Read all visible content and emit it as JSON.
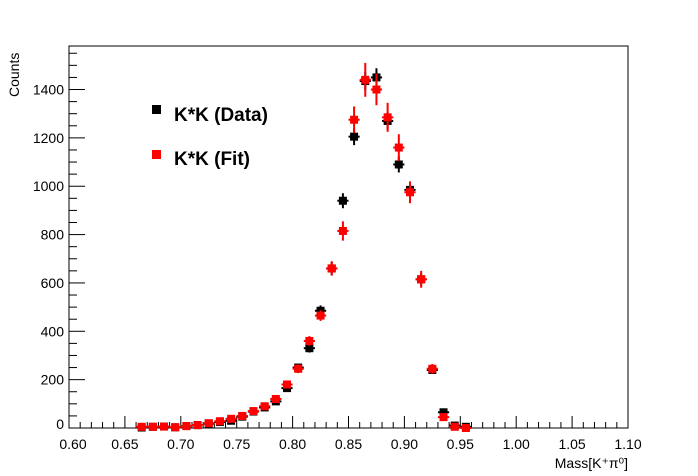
{
  "chart_data": {
    "type": "scatter",
    "title": "",
    "xlabel": "Mass[K⁺π⁰]",
    "ylabel": "Counts",
    "xlim": [
      0.6,
      1.1
    ],
    "ylim": [
      0,
      1580
    ],
    "x_ticks": [
      "0.60",
      "0.65",
      "0.70",
      "0.75",
      "0.80",
      "0.85",
      "0.90",
      "0.95",
      "1.00",
      "1.05",
      "1.10"
    ],
    "y_ticks": [
      "0",
      "200",
      "400",
      "600",
      "800",
      "1000",
      "1200",
      "1400"
    ],
    "grid": false,
    "legend_position": "top-left",
    "bin_width": 0.01,
    "x": [
      0.665,
      0.675,
      0.685,
      0.695,
      0.705,
      0.715,
      0.725,
      0.735,
      0.745,
      0.755,
      0.765,
      0.775,
      0.785,
      0.795,
      0.805,
      0.815,
      0.825,
      0.835,
      0.845,
      0.855,
      0.865,
      0.875,
      0.885,
      0.895,
      0.905,
      0.915,
      0.925,
      0.935,
      0.945,
      0.955
    ],
    "series": [
      {
        "name": "K*K (Data)",
        "color": "#000000",
        "values": [
          2,
          5,
          6,
          3,
          8,
          12,
          18,
          25,
          30,
          47,
          68,
          85,
          110,
          165,
          250,
          330,
          485,
          660,
          940,
          1205,
          1435,
          1450,
          1270,
          1090,
          985,
          615,
          240,
          65,
          10,
          5
        ],
        "errors": [
          2,
          3,
          3,
          2,
          3,
          4,
          5,
          5,
          6,
          7,
          8,
          10,
          11,
          13,
          16,
          18,
          22,
          26,
          31,
          35,
          38,
          38,
          36,
          33,
          32,
          25,
          16,
          8,
          3,
          2
        ]
      },
      {
        "name": "K*K (Fit)",
        "color": "#ff0000",
        "values": [
          5,
          5,
          6,
          3,
          8,
          12,
          20,
          28,
          38,
          50,
          70,
          90,
          120,
          180,
          245,
          360,
          465,
          660,
          815,
          1275,
          1440,
          1400,
          1285,
          1160,
          975,
          615,
          245,
          45,
          5,
          0
        ],
        "errors": [
          3,
          3,
          3,
          2,
          3,
          4,
          5,
          6,
          7,
          8,
          9,
          11,
          12,
          15,
          18,
          20,
          22,
          30,
          40,
          55,
          70,
          65,
          60,
          55,
          45,
          35,
          20,
          8,
          3,
          0
        ]
      }
    ]
  }
}
